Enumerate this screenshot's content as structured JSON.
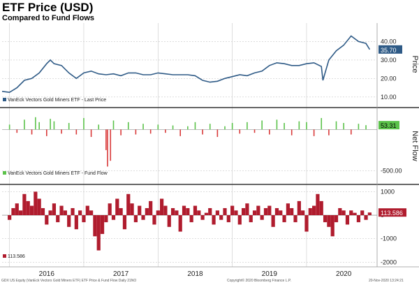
{
  "title": "ETF Price (USD)",
  "subtitle": "Compared to Fund Flows",
  "footer": {
    "left": "GDX US Equity (VanEck Vectors Gold Miners ETF) ETF Price & Fund Flow  Daily 21NO",
    "middle": "Copyright© 2020 Bloomberg Finance L.P.",
    "right": "20-Nov-2020 13:24:21"
  },
  "colors": {
    "price": "#2e5a86",
    "inflow": "#5bc24a",
    "outflow": "#d93a3a",
    "bar": "#b01c2e",
    "grid": "#c9c9c9",
    "divider": "#333333"
  },
  "chart_data": [
    {
      "type": "line",
      "axis_title": "Price",
      "legend": "VanEck Vectors Gold Miners ETF - Last Price",
      "last_value_label": "35.70",
      "last_value": 35.7,
      "yticks": [
        10,
        20,
        30,
        40
      ],
      "ytick_labels": [
        "10.00",
        "20.00",
        "30.00",
        "40.00"
      ],
      "ylim": [
        5,
        50
      ],
      "x": [
        2015.9,
        2016.0,
        2016.1,
        2016.2,
        2016.3,
        2016.4,
        2016.5,
        2016.55,
        2016.6,
        2016.7,
        2016.8,
        2016.9,
        2017.0,
        2017.1,
        2017.2,
        2017.3,
        2017.4,
        2017.5,
        2017.6,
        2017.7,
        2017.8,
        2017.9,
        2018.0,
        2018.1,
        2018.2,
        2018.3,
        2018.4,
        2018.5,
        2018.6,
        2018.7,
        2018.8,
        2018.9,
        2019.0,
        2019.1,
        2019.2,
        2019.3,
        2019.4,
        2019.5,
        2019.6,
        2019.7,
        2019.8,
        2019.9,
        2020.0,
        2020.1,
        2020.2,
        2020.22,
        2020.3,
        2020.4,
        2020.5,
        2020.6,
        2020.7,
        2020.8,
        2020.85
      ],
      "y": [
        13,
        12.5,
        15,
        19,
        20,
        23,
        28,
        30,
        28,
        27,
        23,
        20,
        23,
        24,
        22.5,
        22,
        22.5,
        21.5,
        23,
        23,
        22,
        22,
        23,
        22.5,
        22,
        22,
        22,
        21.5,
        19,
        18,
        18.5,
        20,
        21,
        22,
        21.5,
        23,
        24,
        27,
        28.5,
        28,
        27,
        27,
        28,
        28.5,
        26.5,
        19,
        30,
        35,
        38,
        43,
        40,
        39,
        35.7
      ],
      "xticks": [
        2016.5,
        2017.5,
        2018.5,
        2019.5,
        2020.5
      ],
      "xtick_labels": [
        "2016",
        "2017",
        "2018",
        "2019",
        "2020"
      ],
      "xlim": [
        2015.9,
        2020.95
      ]
    },
    {
      "type": "bar",
      "axis_title": "Net Flow",
      "legend": "VanEck Vectors Gold Miners ETF - Fund Flow",
      "last_value_label": "53.31",
      "last_value": 53.31,
      "yticks": [
        -500
      ],
      "ytick_labels": [
        "-500.00"
      ],
      "ylim": [
        -650,
        250
      ],
      "x": [
        2016.0,
        2016.1,
        2016.2,
        2016.3,
        2016.35,
        2016.4,
        2016.5,
        2016.55,
        2016.6,
        2016.7,
        2016.8,
        2016.9,
        2017.0,
        2017.1,
        2017.2,
        2017.3,
        2017.32,
        2017.36,
        2017.4,
        2017.5,
        2017.6,
        2017.7,
        2017.8,
        2017.9,
        2018.0,
        2018.1,
        2018.2,
        2018.3,
        2018.4,
        2018.5,
        2018.6,
        2018.7,
        2018.8,
        2018.9,
        2019.0,
        2019.1,
        2019.2,
        2019.3,
        2019.4,
        2019.5,
        2019.6,
        2019.7,
        2019.8,
        2019.9,
        2020.0,
        2020.1,
        2020.2,
        2020.3,
        2020.4,
        2020.5,
        2020.6,
        2020.7,
        2020.8
      ],
      "y": [
        60,
        -40,
        120,
        -60,
        150,
        90,
        -80,
        130,
        100,
        -50,
        80,
        -60,
        140,
        -90,
        60,
        -250,
        -450,
        -380,
        110,
        -70,
        90,
        -60,
        70,
        -50,
        60,
        -40,
        50,
        -80,
        40,
        90,
        -60,
        70,
        -90,
        40,
        80,
        -50,
        90,
        -40,
        110,
        -60,
        120,
        80,
        -70,
        100,
        90,
        -80,
        140,
        -70,
        100,
        80,
        -60,
        70,
        53.31
      ]
    },
    {
      "type": "bar",
      "last_value_label": "113.586",
      "last_value": 113.586,
      "legend": "113.586",
      "yticks": [
        1000,
        0,
        -1000,
        -2000
      ],
      "ytick_labels": [
        "1000",
        "0",
        "-1000",
        "-2000"
      ],
      "ylim": [
        -2200,
        1250
      ],
      "x": [
        2016.0,
        2016.05,
        2016.1,
        2016.15,
        2016.2,
        2016.25,
        2016.3,
        2016.35,
        2016.4,
        2016.45,
        2016.5,
        2016.55,
        2016.6,
        2016.65,
        2016.7,
        2016.75,
        2016.8,
        2016.85,
        2016.9,
        2016.95,
        2017.0,
        2017.05,
        2017.1,
        2017.15,
        2017.2,
        2017.25,
        2017.3,
        2017.35,
        2017.4,
        2017.45,
        2017.5,
        2017.55,
        2017.6,
        2017.65,
        2017.7,
        2017.75,
        2017.8,
        2017.85,
        2017.9,
        2017.95,
        2018.0,
        2018.05,
        2018.1,
        2018.15,
        2018.2,
        2018.25,
        2018.3,
        2018.35,
        2018.4,
        2018.45,
        2018.5,
        2018.55,
        2018.6,
        2018.65,
        2018.7,
        2018.75,
        2018.8,
        2018.85,
        2018.9,
        2018.95,
        2019.0,
        2019.05,
        2019.1,
        2019.15,
        2019.2,
        2019.25,
        2019.3,
        2019.35,
        2019.4,
        2019.45,
        2019.5,
        2019.55,
        2019.6,
        2019.65,
        2019.7,
        2019.75,
        2019.8,
        2019.85,
        2019.9,
        2019.95,
        2020.0,
        2020.05,
        2020.1,
        2020.15,
        2020.2,
        2020.25,
        2020.3,
        2020.35,
        2020.4,
        2020.45,
        2020.5,
        2020.55,
        2020.6,
        2020.65,
        2020.7,
        2020.75,
        2020.8,
        2020.85
      ],
      "y": [
        -200,
        300,
        500,
        200,
        900,
        600,
        400,
        1000,
        700,
        300,
        -400,
        200,
        500,
        -300,
        400,
        200,
        -500,
        300,
        -600,
        200,
        -300,
        400,
        200,
        -900,
        -1500,
        -800,
        -300,
        500,
        -200,
        700,
        300,
        -600,
        900,
        500,
        -300,
        400,
        -200,
        300,
        600,
        -400,
        200,
        700,
        400,
        -500,
        300,
        200,
        -700,
        400,
        300,
        -300,
        400,
        200,
        -200,
        100,
        300,
        -400,
        200,
        -200,
        300,
        -300,
        400,
        200,
        -400,
        300,
        500,
        -300,
        200,
        400,
        -200,
        300,
        400,
        -500,
        300,
        200,
        -300,
        500,
        300,
        -300,
        600,
        200,
        -700,
        300,
        400,
        900,
        600,
        -300,
        -500,
        -900,
        -300,
        300,
        200,
        -400,
        200,
        100,
        -300,
        200,
        -200,
        113.586
      ]
    }
  ]
}
